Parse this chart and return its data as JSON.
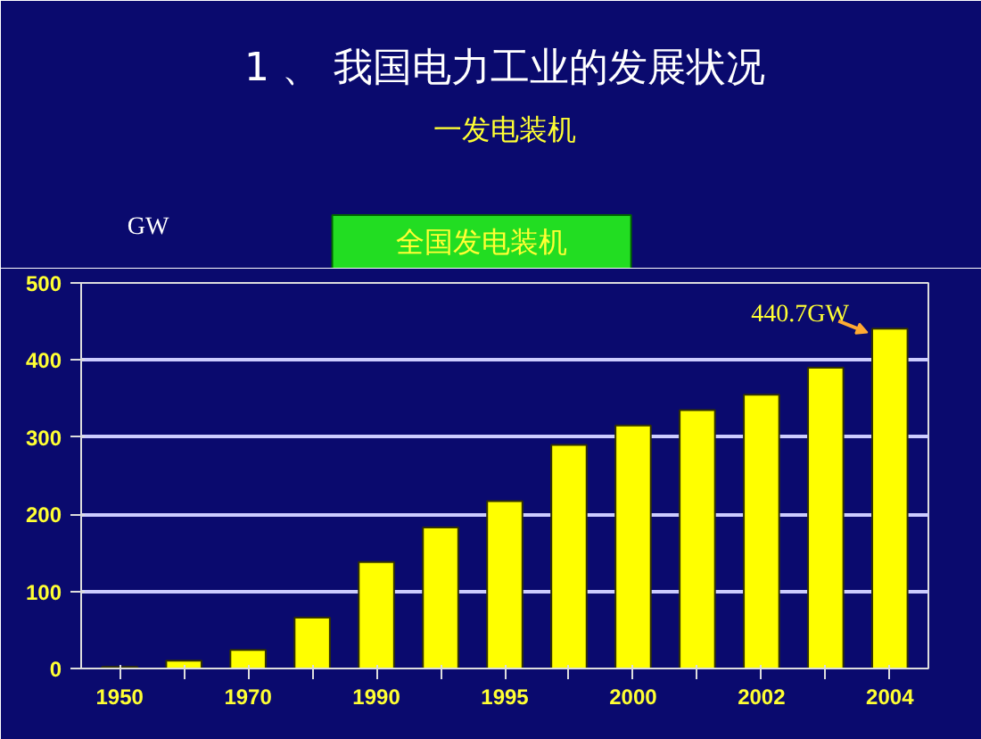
{
  "chart_data": {
    "type": "bar",
    "title": "1 、 我国电力工业的发展状况",
    "subtitle": "一发电装机",
    "ylabel": "GW",
    "categories": [
      "1950",
      null,
      "1970",
      null,
      "1990",
      null,
      "1995",
      null,
      "2000",
      null,
      "2002",
      null,
      "2004"
    ],
    "series": [
      {
        "name": "全国发电装机",
        "color": "#ffff00",
        "values": [
          2,
          10,
          24,
          66,
          138,
          183,
          217,
          290,
          315,
          335,
          355,
          390,
          440.7
        ]
      }
    ],
    "annotations": [
      {
        "text": "440.7GW",
        "x": "2004",
        "y": 440.7
      }
    ],
    "ylim": [
      0,
      500
    ],
    "yticks": [
      0,
      100,
      200,
      300,
      400,
      500
    ],
    "grid": "y"
  }
}
